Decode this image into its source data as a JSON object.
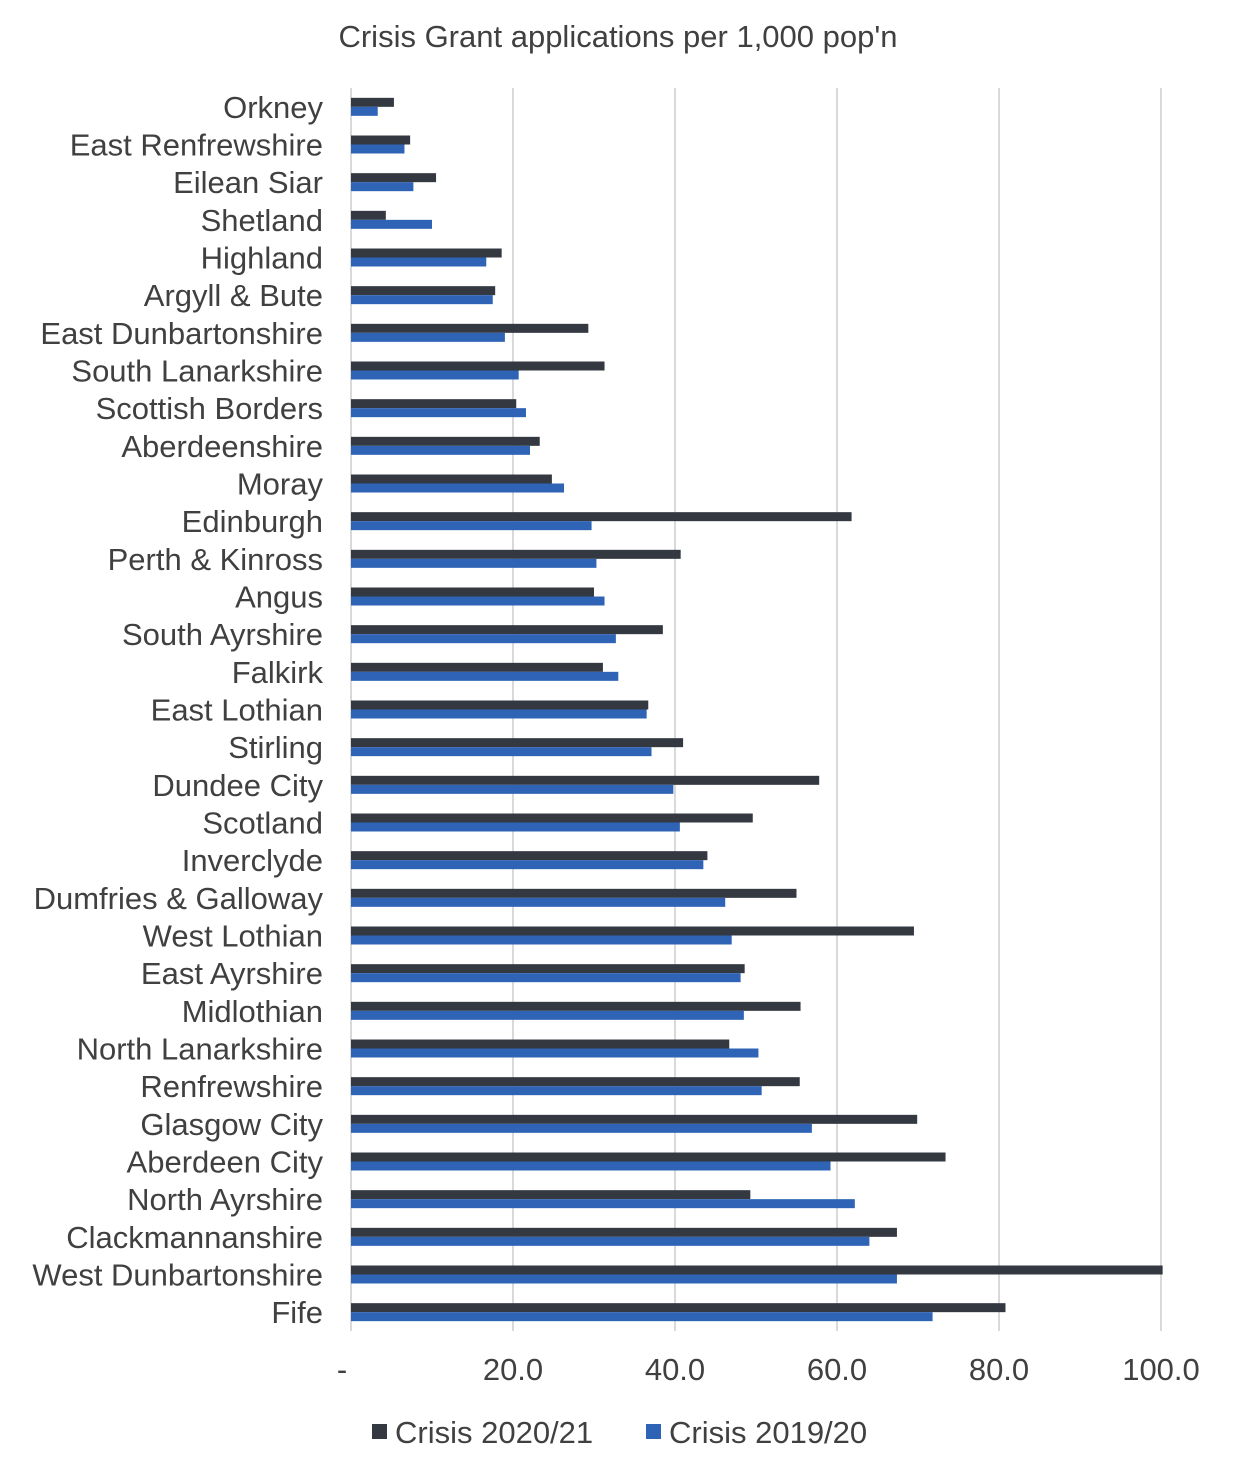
{
  "chart_data": {
    "type": "bar",
    "orientation": "horizontal",
    "title": "Crisis Grant applications per 1,000 pop'n",
    "xlabel": "",
    "ylabel": "",
    "xlim": [
      0,
      100
    ],
    "x_ticks": [
      {
        "value": 0,
        "label": "-"
      },
      {
        "value": 20,
        "label": "20.0"
      },
      {
        "value": 40,
        "label": "40.0"
      },
      {
        "value": 60,
        "label": "60.0"
      },
      {
        "value": 80,
        "label": "80.0"
      },
      {
        "value": 100,
        "label": "100.0"
      }
    ],
    "grid": "vertical",
    "legend_position": "bottom",
    "categories": [
      "Orkney",
      "East Renfrewshire",
      "Eilean Siar",
      "Shetland",
      "Highland",
      "Argyll & Bute",
      "East Dunbartonshire",
      "South Lanarkshire",
      "Scottish Borders",
      "Aberdeenshire",
      "Moray",
      "Edinburgh",
      "Perth & Kinross",
      "Angus",
      "South Ayrshire",
      "Falkirk",
      "East Lothian",
      "Stirling",
      "Dundee City",
      "Scotland",
      "Inverclyde",
      "Dumfries & Galloway",
      "West Lothian",
      "East Ayrshire",
      "Midlothian",
      "North Lanarkshire",
      "Renfrewshire",
      "Glasgow City",
      "Aberdeen City",
      "North Ayrshire",
      "Clackmannanshire",
      "West Dunbartonshire",
      "Fife"
    ],
    "series": [
      {
        "name": "Crisis 2020/21",
        "color": "#333841",
        "values": [
          5.3,
          7.3,
          10.5,
          4.3,
          18.6,
          17.8,
          29.3,
          31.3,
          20.4,
          23.3,
          24.8,
          61.8,
          40.7,
          30.0,
          38.5,
          31.1,
          36.7,
          41.0,
          57.8,
          49.6,
          44.0,
          55.0,
          69.5,
          48.6,
          55.5,
          46.7,
          55.4,
          69.9,
          73.4,
          49.3,
          67.4,
          100.2,
          80.8
        ]
      },
      {
        "name": "Crisis 2019/20",
        "color": "#2e63b6",
        "values": [
          3.3,
          6.6,
          7.7,
          10.0,
          16.7,
          17.5,
          19.0,
          20.7,
          21.6,
          22.1,
          26.3,
          29.7,
          30.3,
          31.3,
          32.7,
          33.0,
          36.5,
          37.1,
          39.8,
          40.6,
          43.5,
          46.2,
          47.0,
          48.1,
          48.5,
          50.3,
          50.7,
          56.9,
          59.2,
          62.2,
          64.0,
          67.4,
          71.8
        ]
      }
    ]
  }
}
